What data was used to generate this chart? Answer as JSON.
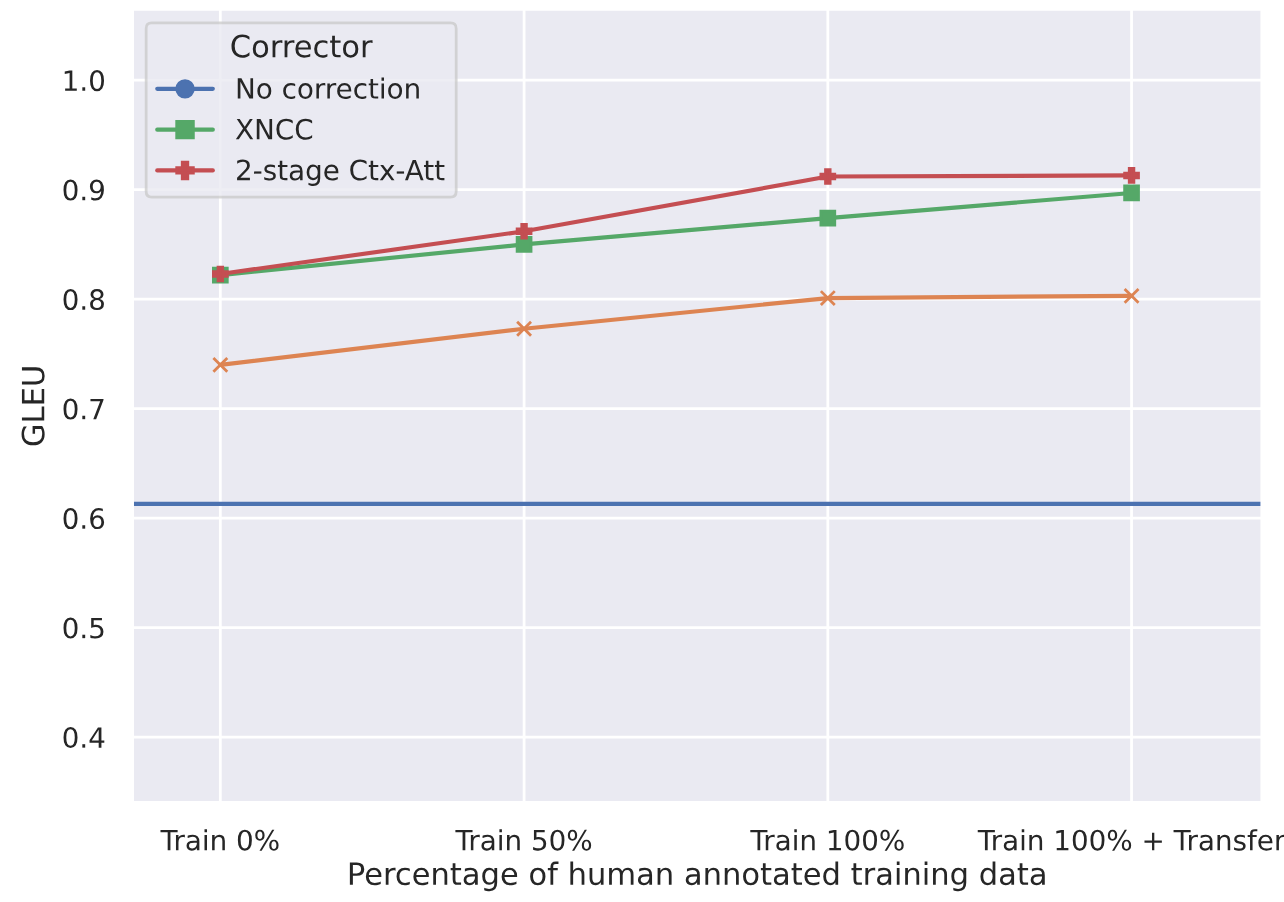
{
  "chart_data": {
    "type": "line",
    "xlabel": "Percentage of human annotated training data",
    "ylabel": "GLEU",
    "legend_title": "Corrector",
    "legend": "top left",
    "grid": true,
    "categories": [
      "Train 0%",
      "Train 50%",
      "Train 100%",
      "Train 100% + Transfer"
    ],
    "ylim": [
      0.34,
      1.065
    ],
    "yticks": [
      0.4,
      0.5,
      0.6,
      0.7,
      0.8,
      0.9,
      {
        "value": 1.0,
        "label": "1.0"
      }
    ],
    "ref_lines": [
      {
        "axis": "y",
        "value": 0.613,
        "label": "No correction",
        "color": "#4c72b0"
      }
    ],
    "series": [
      {
        "color": "#dd8452",
        "marker": "cross",
        "values": [
          0.74,
          0.773,
          0.801,
          0.803
        ]
      },
      {
        "name": "XNCC",
        "color": "#55a868",
        "marker": "square",
        "values": [
          0.822,
          0.85,
          0.874,
          0.897
        ]
      },
      {
        "name": "2-stage Ctx-Att",
        "color": "#c44e52",
        "marker": "plus",
        "values": [
          0.823,
          0.862,
          0.912,
          0.913
        ]
      }
    ]
  }
}
